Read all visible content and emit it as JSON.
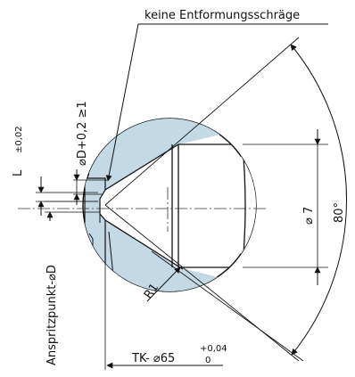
{
  "labels": {
    "no_draft": "keine Entformungsschräge",
    "angle": "80°",
    "diameter_7": "⌀ 7",
    "dim_d": "⌀D+0,2 ≥1",
    "l_main": "L",
    "l_tol": "±0,02",
    "gate_point": "Anspritzpunkt-⌀D",
    "radius": "R1",
    "tk": "TK- ⌀65",
    "tk_tol_upper": "+0,04",
    "tk_tol_lower": "0"
  },
  "colors": {
    "fill": "#c4d9e6",
    "line": "#111111",
    "centerline": "#333333"
  }
}
